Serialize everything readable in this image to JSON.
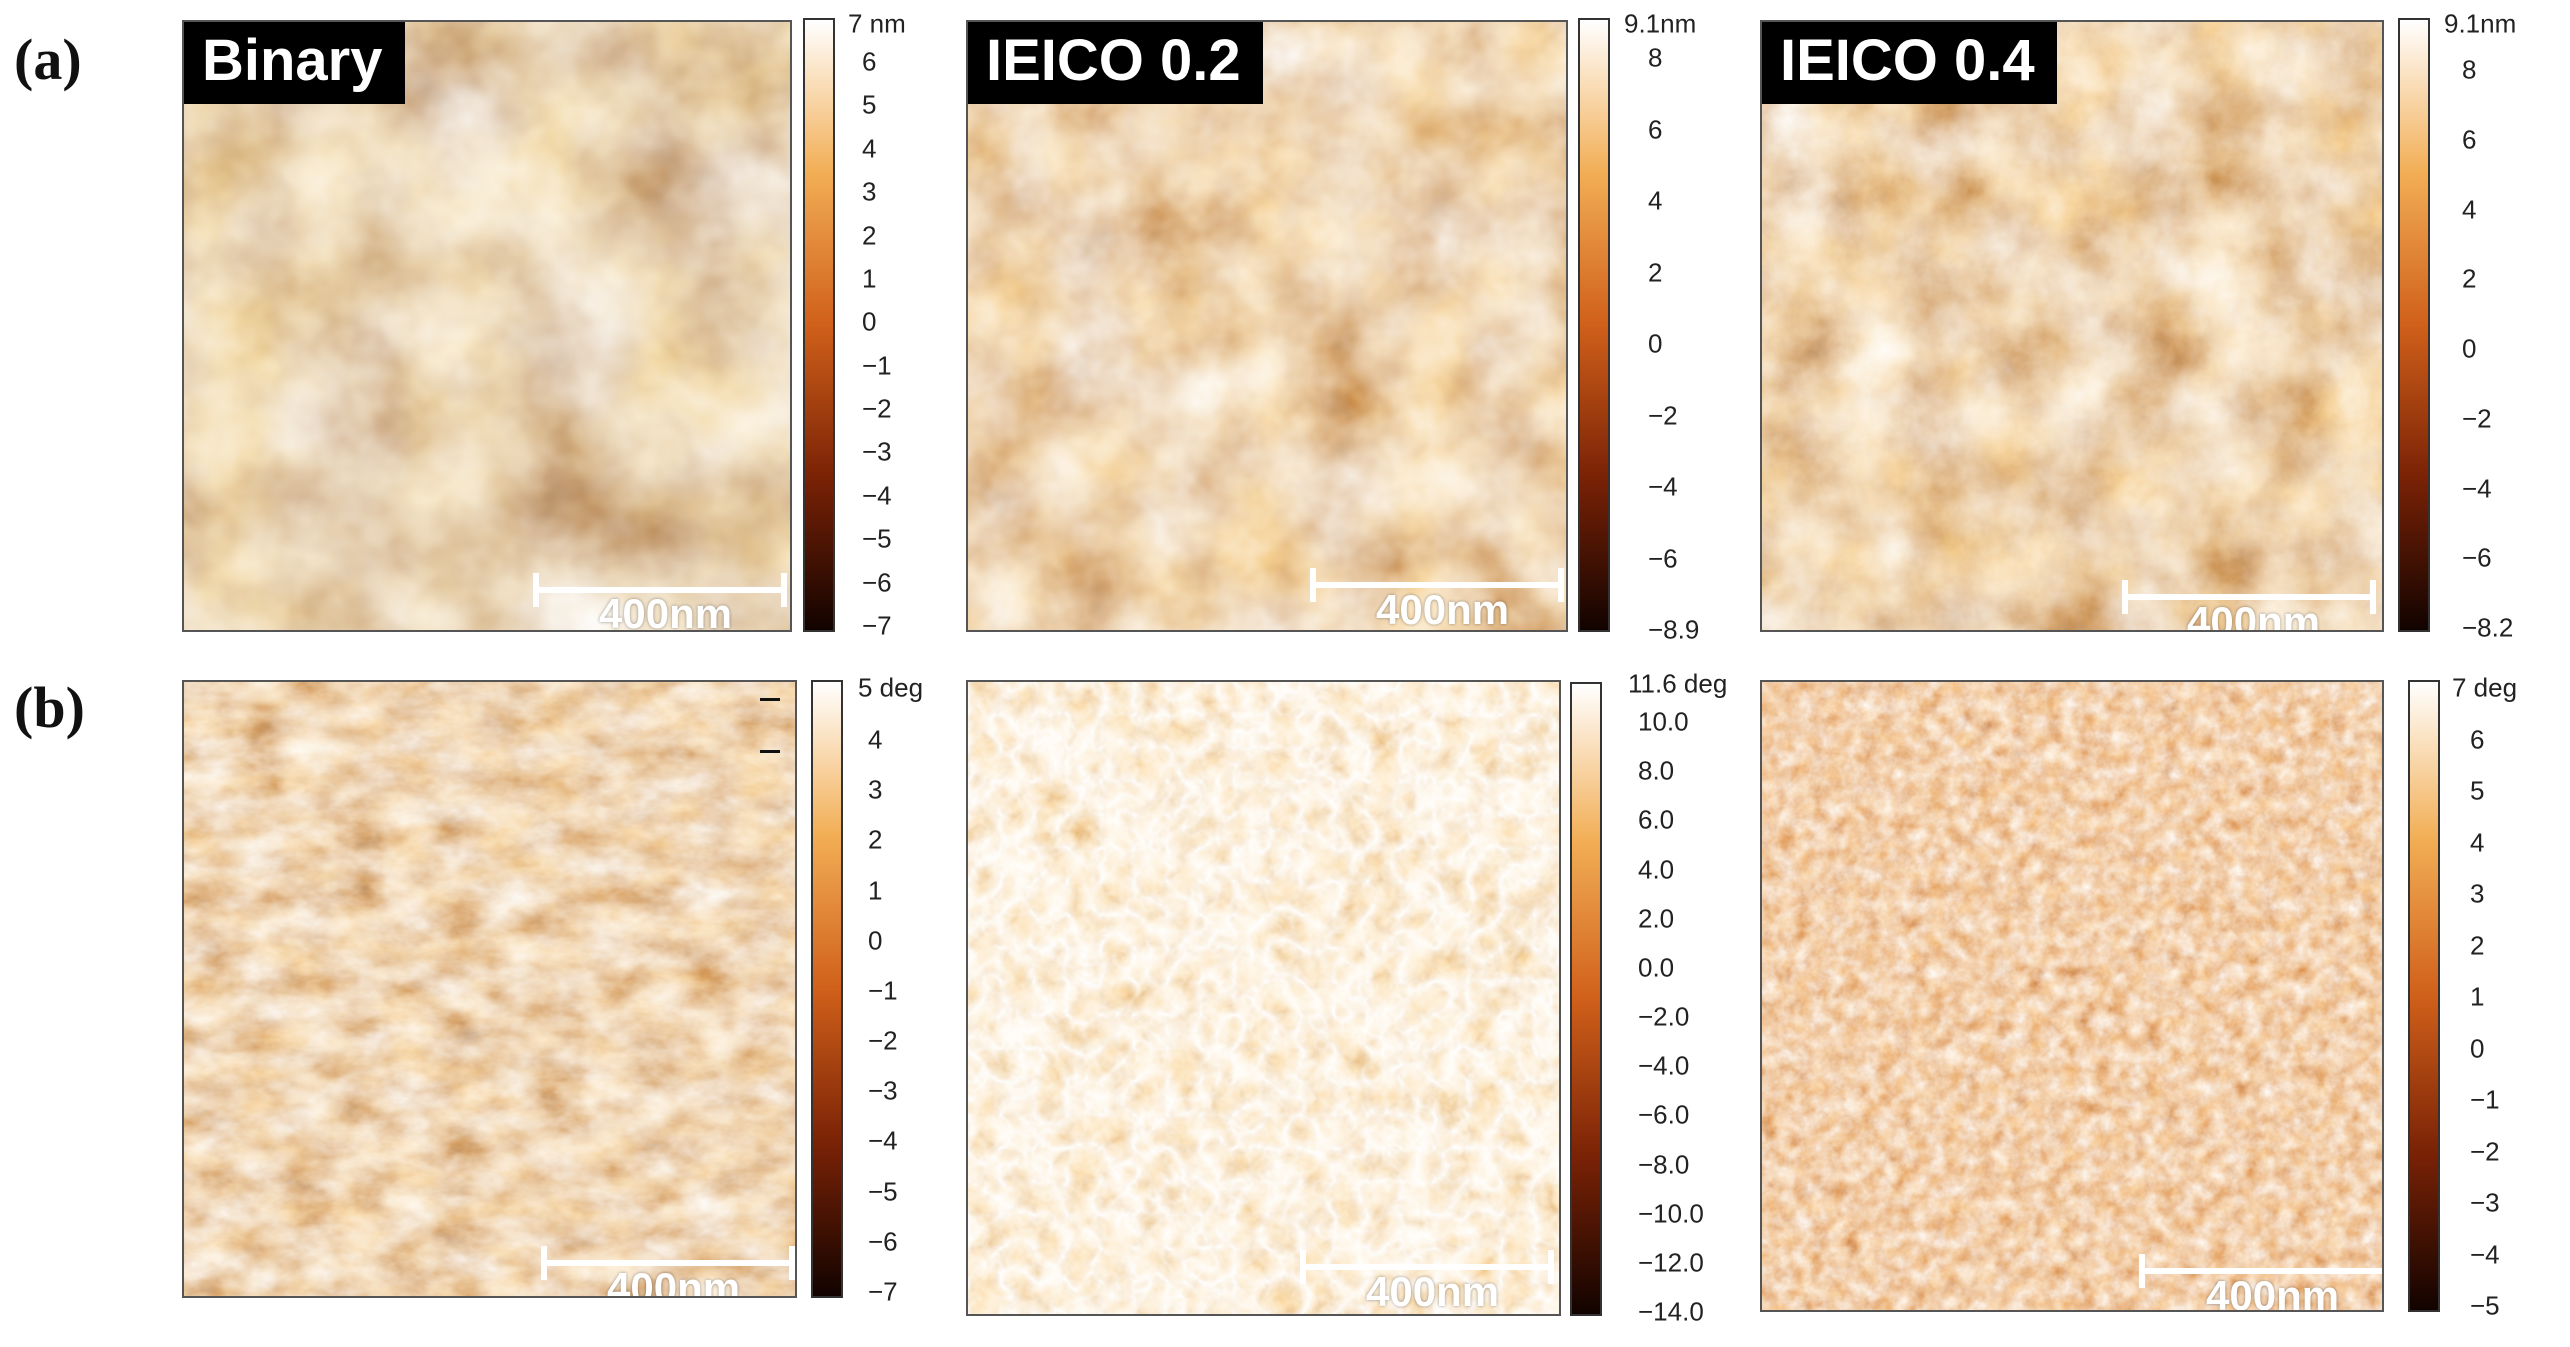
{
  "rows": {
    "a": {
      "label": "(a)"
    },
    "b": {
      "label": "(b)"
    }
  },
  "scale_bar_text": "400nm",
  "panels_a": [
    {
      "title": "Binary",
      "colorbar": {
        "top": "7 nm",
        "ticks": [
          "6",
          "5",
          "4",
          "3",
          "2",
          "1",
          "0",
          "−1",
          "−2",
          "−3",
          "−4",
          "−5",
          "−6",
          "−7"
        ]
      }
    },
    {
      "title": "IEICO 0.2",
      "colorbar": {
        "top": "9.1nm",
        "ticks": [
          "8",
          "6",
          "4",
          "2",
          "0",
          "−2",
          "−4",
          "−6",
          "−8.9"
        ]
      }
    },
    {
      "title": "IEICO 0.4",
      "colorbar": {
        "top": "9.1nm",
        "ticks": [
          "8",
          "6",
          "4",
          "2",
          "0",
          "−2",
          "−4",
          "−6",
          "−8.2"
        ]
      }
    }
  ],
  "panels_b": [
    {
      "colorbar": {
        "top": "5 deg",
        "ticks": [
          "4",
          "3",
          "2",
          "1",
          "0",
          "−1",
          "−2",
          "−3",
          "−4",
          "−5",
          "−6",
          "−7"
        ]
      }
    },
    {
      "colorbar": {
        "top": "11.6 deg",
        "ticks": [
          "10.0",
          "8.0",
          "6.0",
          "4.0",
          "2.0",
          "0.0",
          "−2.0",
          "−4.0",
          "−6.0",
          "−8.0",
          "−10.0",
          "−12.0",
          "−14.0"
        ]
      }
    },
    {
      "colorbar": {
        "top": "7 deg",
        "ticks": [
          "6",
          "5",
          "4",
          "3",
          "2",
          "1",
          "0",
          "−1",
          "−2",
          "−3",
          "−4",
          "−5"
        ]
      }
    }
  ],
  "colors": {
    "dark": "#1a0600",
    "mid": "#c8561a",
    "light": "#fff6e6"
  }
}
